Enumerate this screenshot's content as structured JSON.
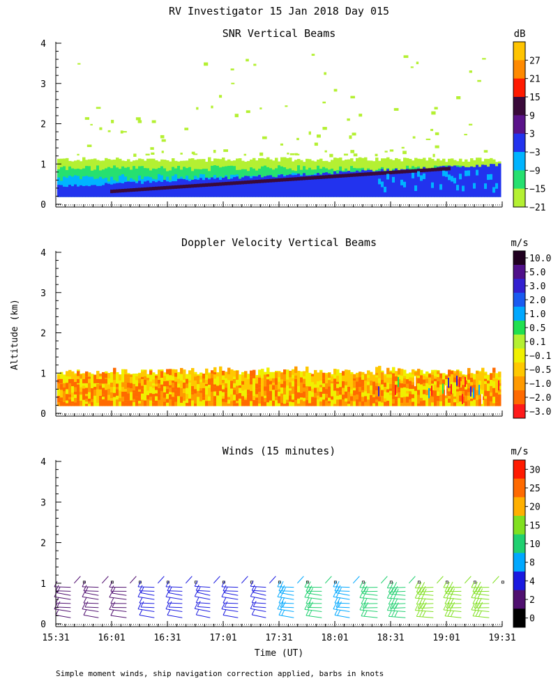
{
  "title": "RV Investigator  15 Jan 2018 Day 015",
  "ylabel": "Altitude (km)",
  "xlabel": "Time (UT)",
  "footnote": "Simple moment winds, ship navigation correction applied, barbs in knots",
  "x_ticks": [
    "15:31",
    "16:01",
    "16:31",
    "17:01",
    "17:31",
    "18:01",
    "18:31",
    "19:01",
    "19:31"
  ],
  "chart_data": [
    {
      "type": "heatmap",
      "title": "SNR Vertical Beams",
      "units": "dB",
      "ylim": [
        0,
        4
      ],
      "y_ticks": [
        "0",
        "1",
        "2",
        "3",
        "4"
      ],
      "xlim": [
        "15:31",
        "19:31"
      ],
      "colorbar_labels": [
        "27",
        "21",
        "15",
        "9",
        "3",
        "−3",
        "−9",
        "−15",
        "−21"
      ],
      "colorbar_colors": [
        "#ffc400",
        "#ff8a00",
        "#ff1a00",
        "#3a0a3a",
        "#5a138a",
        "#2233ee",
        "#00b4ff",
        "#26e070",
        "#b4f032"
      ],
      "layers": [
        {
          "name": "noise edge",
          "altitude_top_start_km": 1.1,
          "altitude_top_end_km": 1.1,
          "color": "#b4f032"
        },
        {
          "name": "−15 band",
          "altitude_top_start_km": 0.85,
          "altitude_top_end_km": 0.85,
          "color": "#26e070"
        },
        {
          "name": "−9 band",
          "altitude_top_start_km": 0.6,
          "altitude_top_end_km": 0.75,
          "color": "#00b4ff"
        },
        {
          "name": "−3 band",
          "altitude_top_start_km": 0.35,
          "altitude_top_end_km": 0.9,
          "color": "#2233ee"
        },
        {
          "name": "strong echo layer",
          "altitude_start_km": 0.3,
          "altitude_end_km": 0.85,
          "color": "#3a0a3a"
        }
      ]
    },
    {
      "type": "heatmap",
      "title": "Doppler Velocity Vertical Beams",
      "units": "m/s",
      "ylim": [
        0,
        4
      ],
      "y_ticks": [
        "0",
        "1",
        "2",
        "3",
        "4"
      ],
      "xlim": [
        "15:31",
        "19:31"
      ],
      "colorbar_labels": [
        "10.0",
        "5.0",
        "3.0",
        "2.0",
        "1.0",
        "0.5",
        "0.1",
        "−0.1",
        "−0.5",
        "−1.0",
        "−2.0",
        "−3.0"
      ],
      "colorbar_colors": [
        "#200020",
        "#50108a",
        "#3320d0",
        "#1a5af0",
        "#00a8ff",
        "#20e050",
        "#b4f032",
        "#f0f000",
        "#ffc800",
        "#ff9a00",
        "#ff6a00",
        "#ff1a1a"
      ],
      "layers": [
        {
          "name": "weak downdraft (−0.1 to −0.5)",
          "altitude_top_km": 1.05,
          "color": "#f0f000"
        },
        {
          "name": "downdraft (−1.0 to −2.0)",
          "altitude_top_km": 0.55,
          "color": "#ff9a00"
        }
      ]
    },
    {
      "type": "wind-barbs",
      "title": "Winds (15 minutes)",
      "units": "m/s",
      "ylim": [
        0,
        4
      ],
      "y_ticks": [
        "0",
        "1",
        "2",
        "3",
        "4"
      ],
      "xlim": [
        "15:31",
        "19:31"
      ],
      "colorbar_labels": [
        "30",
        "25",
        "20",
        "15",
        "10",
        "8",
        "4",
        "2",
        "0"
      ],
      "colorbar_colors": [
        "#ff1a00",
        "#ff6a00",
        "#ffb000",
        "#80e020",
        "#20d070",
        "#00a8ff",
        "#1a1ae0",
        "#501070",
        "#000000"
      ],
      "times": [
        "15:39",
        "15:54",
        "16:09",
        "16:24",
        "16:39",
        "16:54",
        "17:09",
        "17:24",
        "17:39",
        "17:54",
        "18:09",
        "18:24",
        "18:39",
        "18:54",
        "19:09",
        "19:24"
      ],
      "speed_ms": [
        3,
        3,
        3,
        4,
        4,
        5,
        7,
        5,
        9,
        11,
        9,
        11,
        13,
        15,
        16,
        18
      ],
      "direction_deg": [
        300,
        300,
        295,
        300,
        300,
        305,
        300,
        305,
        300,
        295,
        300,
        290,
        285,
        285,
        290,
        290
      ],
      "altitudes_km": [
        0.3,
        0.5,
        0.7,
        0.9
      ]
    }
  ]
}
